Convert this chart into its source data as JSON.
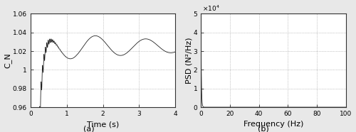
{
  "left_plot": {
    "xlabel": "Time (s)",
    "ylabel": "C_N",
    "xlim": [
      0,
      4
    ],
    "ylim": [
      0.96,
      1.06
    ],
    "yticks": [
      0.96,
      0.98,
      1.0,
      1.02,
      1.04,
      1.06
    ],
    "ytick_labels": [
      "0.96",
      "0.98",
      "1",
      "1.02",
      "1.04",
      "1.06"
    ],
    "xticks": [
      0,
      1,
      2,
      3,
      4
    ],
    "label": "(a)",
    "line_color": "#222222"
  },
  "right_plot": {
    "xlabel": "Frequency (Hz)",
    "ylabel": "PSD (N²/Hz)",
    "xlim": [
      0,
      100
    ],
    "ylim": [
      0,
      50000
    ],
    "yticks": [
      0,
      10000,
      20000,
      30000,
      40000,
      50000
    ],
    "xticks": [
      0,
      20,
      40,
      60,
      80,
      100
    ],
    "label": "(b)",
    "line_color": "#222222",
    "ytick_labels": [
      "0",
      "1",
      "2",
      "3",
      "4",
      "5"
    ]
  },
  "background_color": "#ffffff",
  "figure_color": "#e8e8e8",
  "grid_color": "#999999",
  "grid_style": ":"
}
